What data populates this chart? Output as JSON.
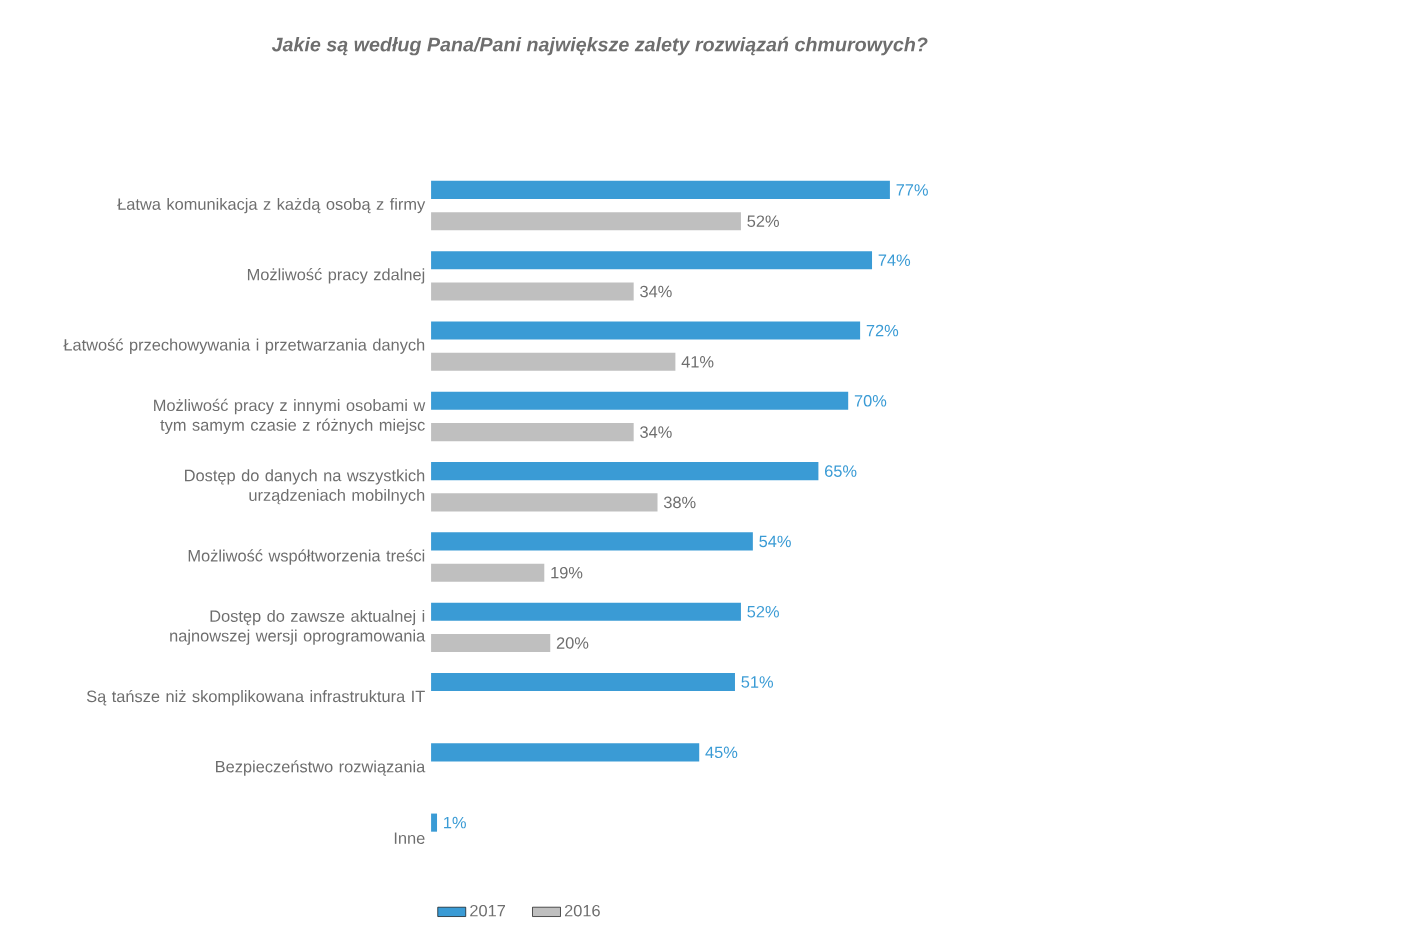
{
  "chart_data": {
    "type": "bar",
    "orientation": "horizontal",
    "title": "Jakie są według Pana/Pani największe zalety rozwiązań chmurowych?",
    "categories": [
      "Łatwa komunikacja z każdą osobą z firmy",
      "Możliwość  pracy zdalnej",
      "Łatwość przechowywania i przetwarzania danych",
      "Możliwość pracy z innymi osobami w tym samym czasie z różnych miejsc",
      "Dostęp do danych na wszystkich urządzeniach mobilnych",
      "Możliwość współtworzenia treści",
      "Dostęp do zawsze aktualnej i najnowszej wersji oprogramowania",
      "Są tańsze niż skomplikowana infrastruktura IT",
      "Bezpieczeństwo rozwiązania",
      "Inne"
    ],
    "series": [
      {
        "name": "2017",
        "color": "#3a9bd5",
        "values": [
          77,
          74,
          72,
          70,
          65,
          54,
          52,
          51,
          45,
          1
        ],
        "value_labels": [
          "77%",
          "74%",
          "72%",
          "70%",
          "65%",
          "54%",
          "52%",
          "51%",
          "45%",
          "1%"
        ]
      },
      {
        "name": "2016",
        "color": "#bfbfbf",
        "values": [
          52,
          34,
          41,
          34,
          38,
          19,
          20,
          null,
          null,
          null
        ],
        "value_labels": [
          "52%",
          "34%",
          "41%",
          "34%",
          "38%",
          "19%",
          "20%",
          null,
          null,
          null
        ]
      }
    ],
    "legend": "bottom"
  }
}
